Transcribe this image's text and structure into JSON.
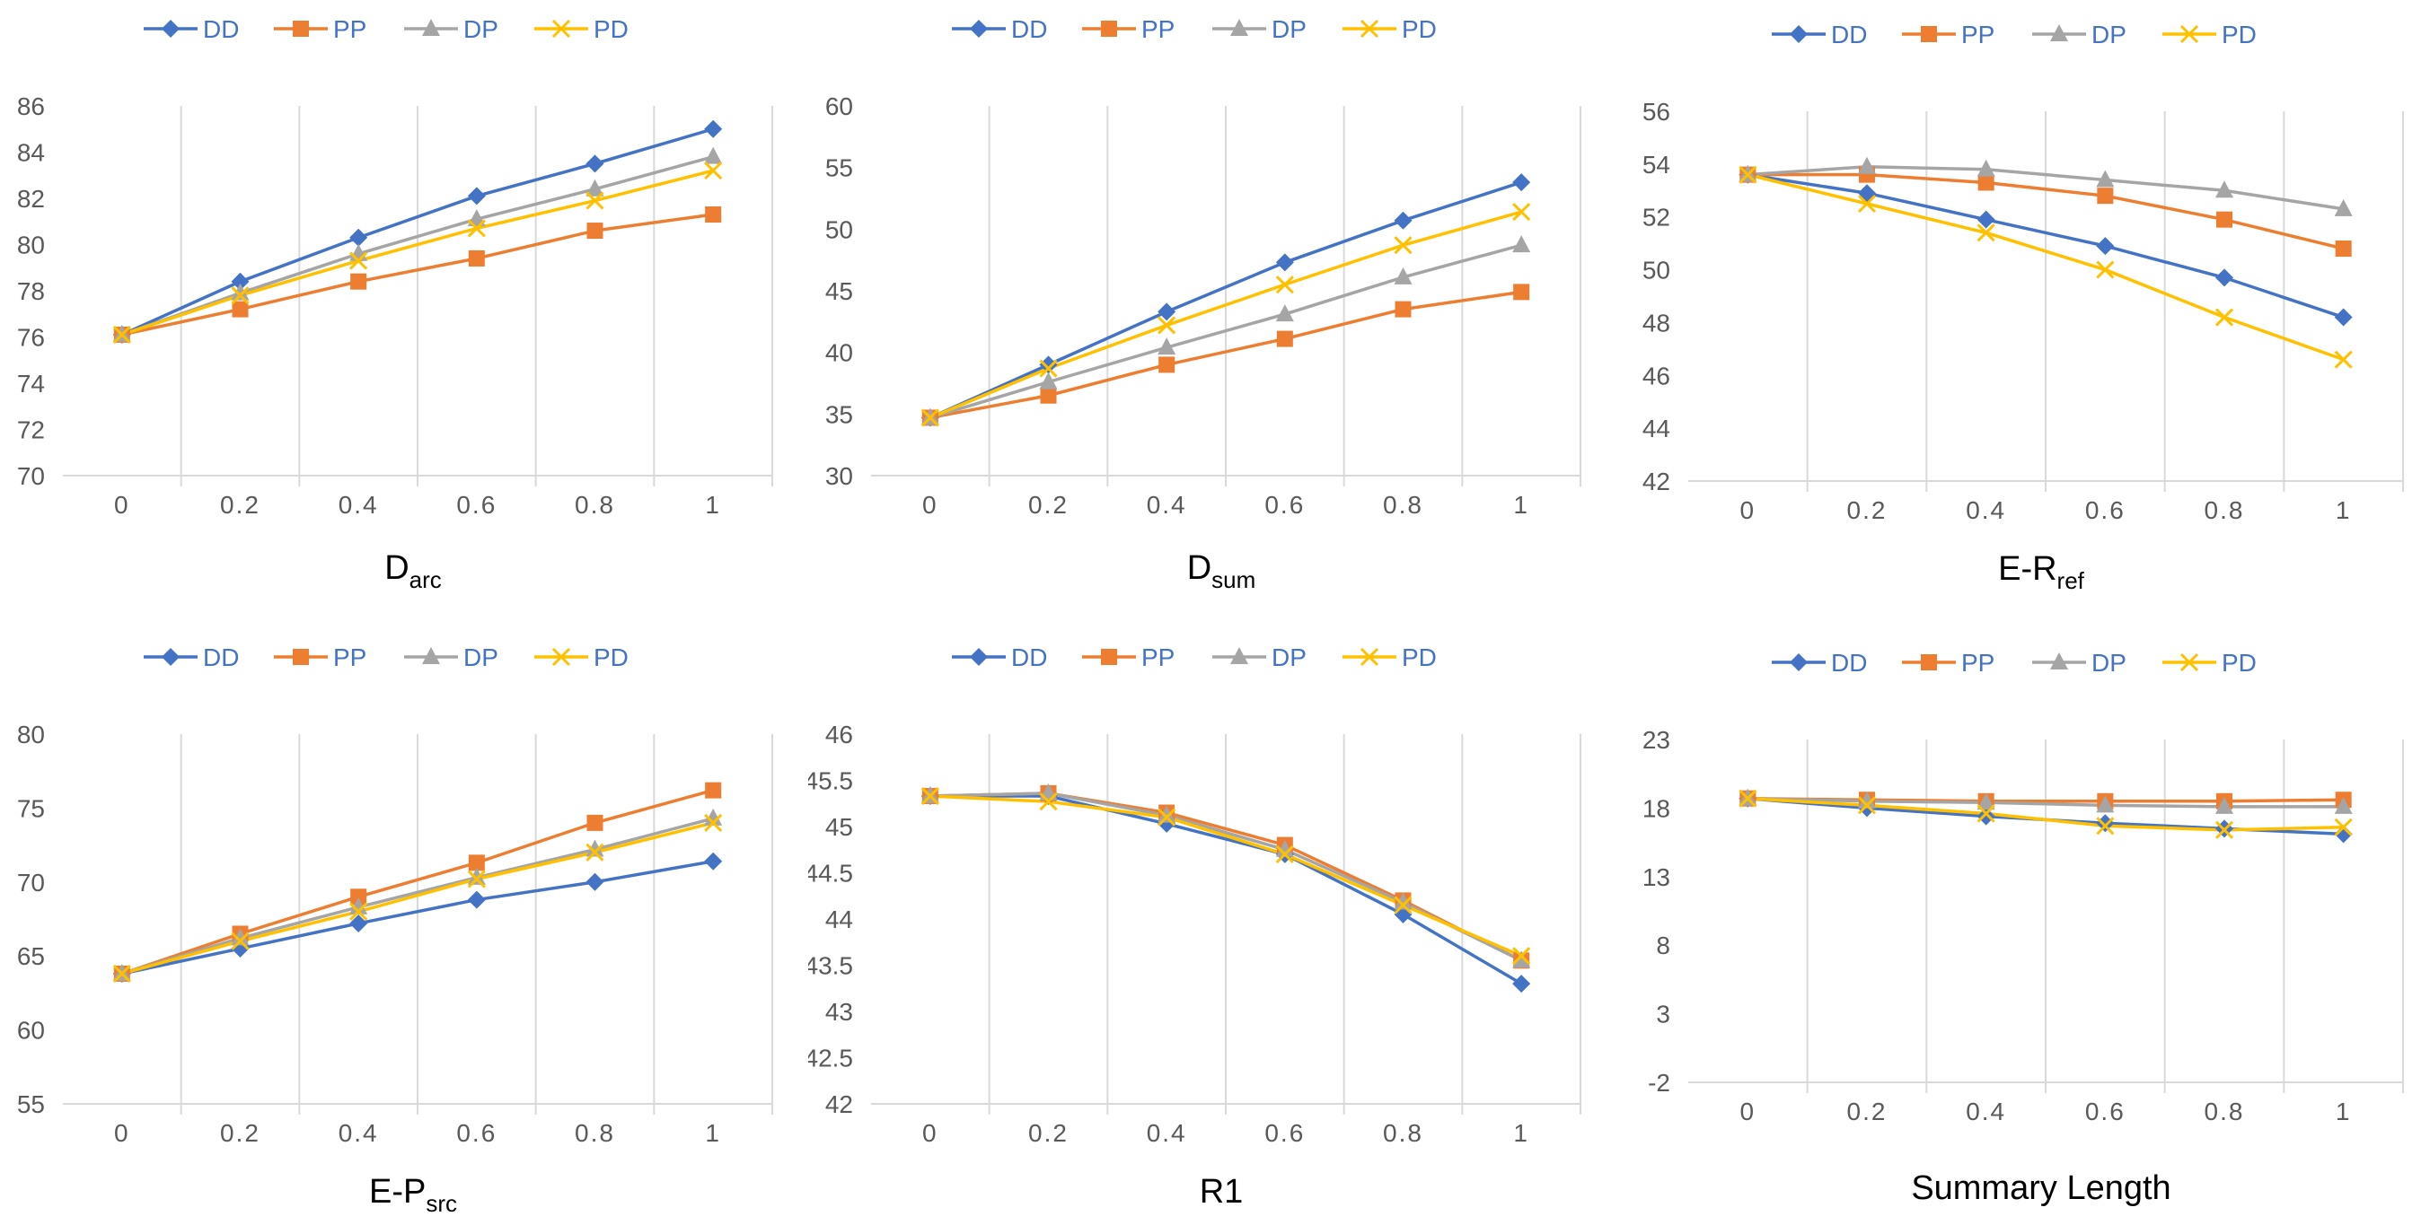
{
  "colors": {
    "DD": "#4472C4",
    "PP": "#ED7D31",
    "DP": "#A5A5A5",
    "PD": "#FFC000",
    "grid": "#D9D9D9",
    "text": "#595959"
  },
  "chart_data": [
    {
      "type": "line",
      "title": "D_arc",
      "title_main": "D",
      "title_sub": "arc",
      "x": [
        "0",
        "0.2",
        "0.4",
        "0.6",
        "0.8",
        "1"
      ],
      "ylim": [
        70,
        86
      ],
      "yticks": [
        70,
        72,
        74,
        76,
        78,
        80,
        82,
        84,
        86
      ],
      "legend": "top",
      "series": [
        {
          "name": "DD",
          "marker": "diamond",
          "values": [
            76.1,
            78.4,
            80.3,
            82.1,
            83.5,
            85.0
          ]
        },
        {
          "name": "PP",
          "marker": "square",
          "values": [
            76.1,
            77.2,
            78.4,
            79.4,
            80.6,
            81.3
          ]
        },
        {
          "name": "DP",
          "marker": "triangle",
          "values": [
            76.1,
            77.9,
            79.6,
            81.1,
            82.4,
            83.8
          ]
        },
        {
          "name": "PD",
          "marker": "x",
          "values": [
            76.1,
            77.8,
            79.3,
            80.7,
            81.9,
            83.2
          ]
        }
      ]
    },
    {
      "type": "line",
      "title": "D_sum",
      "title_main": "D",
      "title_sub": "sum",
      "x": [
        "0",
        "0.2",
        "0.4",
        "0.6",
        "0.8",
        "1"
      ],
      "ylim": [
        30,
        60
      ],
      "yticks": [
        30,
        35,
        40,
        45,
        50,
        55,
        60
      ],
      "legend": "top",
      "series": [
        {
          "name": "DD",
          "marker": "diamond",
          "values": [
            34.7,
            39.0,
            43.3,
            47.3,
            50.7,
            53.8
          ]
        },
        {
          "name": "PP",
          "marker": "square",
          "values": [
            34.7,
            36.5,
            39.0,
            41.1,
            43.5,
            44.9
          ]
        },
        {
          "name": "DP",
          "marker": "triangle",
          "values": [
            34.7,
            37.6,
            40.4,
            43.1,
            46.1,
            48.7
          ]
        },
        {
          "name": "PD",
          "marker": "x",
          "values": [
            34.7,
            38.7,
            42.2,
            45.5,
            48.7,
            51.4
          ]
        }
      ]
    },
    {
      "type": "line",
      "title": "E-R_ref",
      "title_main": "E-R",
      "title_sub": "ref",
      "x": [
        "0",
        "0.2",
        "0.4",
        "0.6",
        "0.8",
        "1"
      ],
      "ylim": [
        42,
        56
      ],
      "yticks": [
        42,
        44,
        46,
        48,
        50,
        52,
        54,
        56
      ],
      "legend": "top",
      "series": [
        {
          "name": "DD",
          "marker": "diamond",
          "values": [
            53.6,
            52.9,
            51.9,
            50.9,
            49.7,
            48.2
          ]
        },
        {
          "name": "PP",
          "marker": "square",
          "values": [
            53.6,
            53.6,
            53.3,
            52.8,
            51.9,
            50.8
          ]
        },
        {
          "name": "DP",
          "marker": "triangle",
          "values": [
            53.6,
            53.9,
            53.8,
            53.4,
            53.0,
            52.3
          ]
        },
        {
          "name": "PD",
          "marker": "x",
          "values": [
            53.6,
            52.5,
            51.4,
            50.0,
            48.2,
            46.6
          ]
        }
      ]
    },
    {
      "type": "line",
      "title": "E-P_src",
      "title_main": "E-P",
      "title_sub": "src",
      "x": [
        "0",
        "0.2",
        "0.4",
        "0.6",
        "0.8",
        "1"
      ],
      "ylim": [
        55,
        80
      ],
      "yticks": [
        55,
        60,
        65,
        70,
        75,
        80
      ],
      "legend": "top",
      "series": [
        {
          "name": "DD",
          "marker": "diamond",
          "values": [
            63.8,
            65.5,
            67.2,
            68.8,
            70.0,
            71.4
          ]
        },
        {
          "name": "PP",
          "marker": "square",
          "values": [
            63.8,
            66.5,
            69.0,
            71.3,
            74.0,
            76.2
          ]
        },
        {
          "name": "DP",
          "marker": "triangle",
          "values": [
            63.8,
            66.2,
            68.3,
            70.3,
            72.2,
            74.3
          ]
        },
        {
          "name": "PD",
          "marker": "x",
          "values": [
            63.8,
            66.0,
            68.0,
            70.2,
            72.0,
            74.0
          ]
        }
      ]
    },
    {
      "type": "line",
      "title": "R1",
      "title_main": "R1",
      "title_sub": "",
      "x": [
        "0",
        "0.2",
        "0.4",
        "0.6",
        "0.8",
        "1"
      ],
      "ylim": [
        42,
        46
      ],
      "yticks": [
        42,
        42.5,
        43,
        43.5,
        44,
        44.5,
        45,
        45.5,
        46
      ],
      "legend": "top",
      "series": [
        {
          "name": "DD",
          "marker": "diamond",
          "values": [
            45.33,
            45.33,
            45.03,
            44.7,
            44.05,
            43.3
          ]
        },
        {
          "name": "PP",
          "marker": "square",
          "values": [
            45.33,
            45.36,
            45.15,
            44.8,
            44.2,
            43.55
          ]
        },
        {
          "name": "DP",
          "marker": "triangle",
          "values": [
            45.33,
            45.36,
            45.12,
            44.75,
            44.18,
            43.55
          ]
        },
        {
          "name": "PD",
          "marker": "x",
          "values": [
            45.33,
            45.27,
            45.1,
            44.7,
            44.15,
            43.6
          ]
        }
      ]
    },
    {
      "type": "line",
      "title": "Summary Length",
      "title_main": "Summary Length",
      "title_sub": "",
      "x": [
        "0",
        "0.2",
        "0.4",
        "0.6",
        "0.8",
        "1"
      ],
      "ylim": [
        -2,
        23
      ],
      "yticks": [
        -2,
        3,
        8,
        13,
        18,
        23
      ],
      "legend": "top",
      "series": [
        {
          "name": "DD",
          "marker": "diamond",
          "values": [
            18.7,
            18.0,
            17.4,
            16.9,
            16.5,
            16.1
          ]
        },
        {
          "name": "PP",
          "marker": "square",
          "values": [
            18.7,
            18.6,
            18.5,
            18.5,
            18.5,
            18.6
          ]
        },
        {
          "name": "DP",
          "marker": "triangle",
          "values": [
            18.7,
            18.5,
            18.4,
            18.2,
            18.1,
            18.1
          ]
        },
        {
          "name": "PD",
          "marker": "x",
          "values": [
            18.7,
            18.2,
            17.6,
            16.7,
            16.4,
            16.6
          ]
        }
      ]
    }
  ]
}
